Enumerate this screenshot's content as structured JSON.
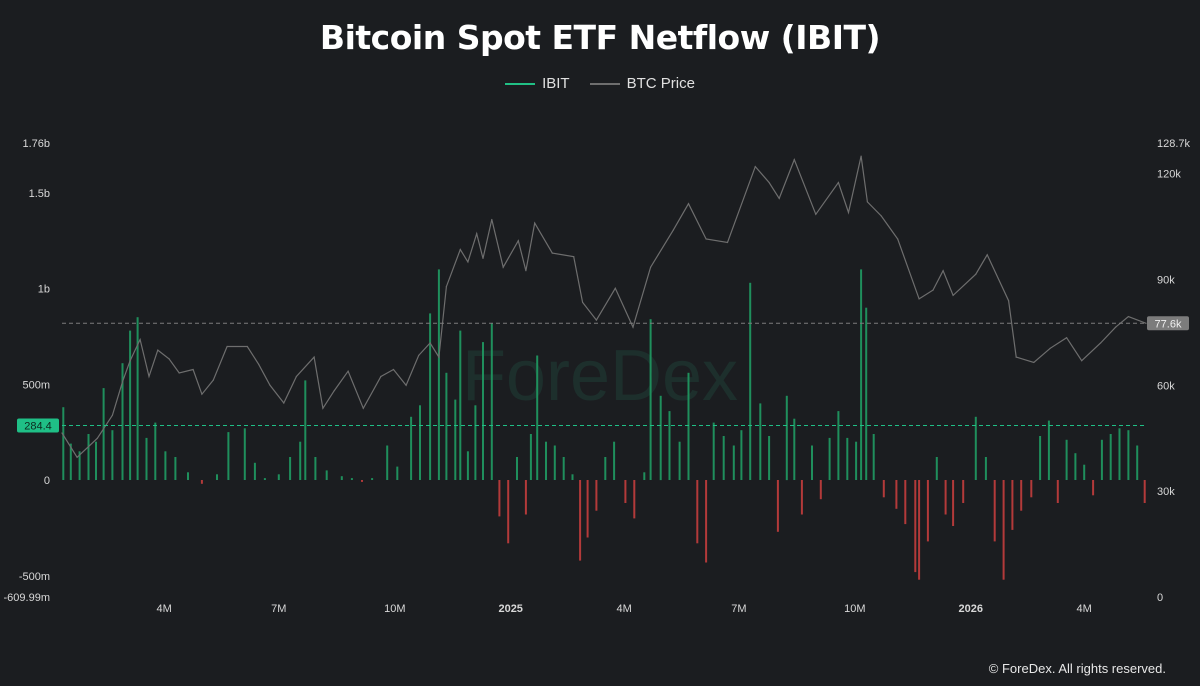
{
  "chart_data": {
    "type": "bar",
    "title": "Bitcoin Spot ETF Netflow (IBIT)",
    "legend_position": "top-center",
    "grid": false,
    "series": [
      {
        "name": "IBIT",
        "kind": "bar",
        "axis": "left"
      },
      {
        "name": "BTC Price",
        "kind": "line",
        "axis": "right"
      }
    ],
    "colors": {
      "ibit": "#21c085",
      "btc_price": "#6e6e6e",
      "bar_positive": "#1f8f5c",
      "bar_negative": "#b33a3a",
      "marker_left": "#1fbf86",
      "marker_right": "#7c7c7c"
    },
    "left_axis": {
      "ylim": [
        -609990000,
        1760000000
      ],
      "ticks": [
        {
          "value": 1760000000,
          "label": "1.76b"
        },
        {
          "value": 1500000000,
          "label": "1.5b"
        },
        {
          "value": 1000000000,
          "label": "1b"
        },
        {
          "value": 500000000,
          "label": "500m"
        },
        {
          "value": 0,
          "label": "0"
        },
        {
          "value": -500000000,
          "label": "-500m"
        },
        {
          "value": -609990000,
          "label": "-609.99m"
        }
      ]
    },
    "right_axis": {
      "ylim": [
        0,
        128700
      ],
      "ticks": [
        {
          "value": 128700,
          "label": "128.7k"
        },
        {
          "value": 120000,
          "label": "120k"
        },
        {
          "value": 90000,
          "label": "90k"
        },
        {
          "value": 60000,
          "label": "60k"
        },
        {
          "value": 30000,
          "label": "30k"
        },
        {
          "value": 0,
          "label": "0"
        }
      ]
    },
    "x_axis": {
      "xlim": [
        "2024-01-11",
        "2026-05-20"
      ],
      "ticks": [
        {
          "date": "2024-04-01",
          "label": "4M",
          "bold": false
        },
        {
          "date": "2024-07-01",
          "label": "7M",
          "bold": false
        },
        {
          "date": "2024-10-01",
          "label": "10M",
          "bold": false
        },
        {
          "date": "2025-01-01",
          "label": "2025",
          "bold": true
        },
        {
          "date": "2025-04-01",
          "label": "4M",
          "bold": false
        },
        {
          "date": "2025-07-01",
          "label": "7M",
          "bold": false
        },
        {
          "date": "2025-10-01",
          "label": "10M",
          "bold": false
        },
        {
          "date": "2026-01-01",
          "label": "2026",
          "bold": true
        },
        {
          "date": "2026-04-01",
          "label": "4M",
          "bold": false
        }
      ]
    },
    "current_markers": {
      "ibit_label": "284.4",
      "ibit_value": 284400000,
      "btc_label": "77.6k",
      "btc_value": 77600
    },
    "btc_price": [
      [
        "2024-01-11",
        46500
      ],
      [
        "2024-01-23",
        39600
      ],
      [
        "2024-02-08",
        45000
      ],
      [
        "2024-02-20",
        51500
      ],
      [
        "2024-02-28",
        61000
      ],
      [
        "2024-03-05",
        67000
      ],
      [
        "2024-03-13",
        73000
      ],
      [
        "2024-03-20",
        62500
      ],
      [
        "2024-03-27",
        70000
      ],
      [
        "2024-04-05",
        67500
      ],
      [
        "2024-04-13",
        63500
      ],
      [
        "2024-04-24",
        64500
      ],
      [
        "2024-05-01",
        57500
      ],
      [
        "2024-05-10",
        61500
      ],
      [
        "2024-05-21",
        71000
      ],
      [
        "2024-06-06",
        71000
      ],
      [
        "2024-06-15",
        66000
      ],
      [
        "2024-06-24",
        60000
      ],
      [
        "2024-07-05",
        55000
      ],
      [
        "2024-07-15",
        62500
      ],
      [
        "2024-07-29",
        68000
      ],
      [
        "2024-08-05",
        53500
      ],
      [
        "2024-08-14",
        58500
      ],
      [
        "2024-08-25",
        64000
      ],
      [
        "2024-09-06",
        53500
      ],
      [
        "2024-09-20",
        62500
      ],
      [
        "2024-09-30",
        64500
      ],
      [
        "2024-10-10",
        60000
      ],
      [
        "2024-10-20",
        68500
      ],
      [
        "2024-10-29",
        72000
      ],
      [
        "2024-11-05",
        68000
      ],
      [
        "2024-11-11",
        88000
      ],
      [
        "2024-11-22",
        98500
      ],
      [
        "2024-11-28",
        95000
      ],
      [
        "2024-12-05",
        103000
      ],
      [
        "2024-12-10",
        96000
      ],
      [
        "2024-12-17",
        107000
      ],
      [
        "2024-12-26",
        93500
      ],
      [
        "2025-01-07",
        101000
      ],
      [
        "2025-01-13",
        92500
      ],
      [
        "2025-01-20",
        106000
      ],
      [
        "2025-02-03",
        97500
      ],
      [
        "2025-02-20",
        96500
      ],
      [
        "2025-02-27",
        83500
      ],
      [
        "2025-03-10",
        78500
      ],
      [
        "2025-03-25",
        87500
      ],
      [
        "2025-04-08",
        76500
      ],
      [
        "2025-04-22",
        93500
      ],
      [
        "2025-05-10",
        104000
      ],
      [
        "2025-05-22",
        111500
      ],
      [
        "2025-06-05",
        101500
      ],
      [
        "2025-06-22",
        100500
      ],
      [
        "2025-07-14",
        122000
      ],
      [
        "2025-07-25",
        117500
      ],
      [
        "2025-08-02",
        113000
      ],
      [
        "2025-08-14",
        124000
      ],
      [
        "2025-08-31",
        108500
      ],
      [
        "2025-09-18",
        117500
      ],
      [
        "2025-09-26",
        109000
      ],
      [
        "2025-10-06",
        125000
      ],
      [
        "2025-10-11",
        112000
      ],
      [
        "2025-10-22",
        108000
      ],
      [
        "2025-11-04",
        101500
      ],
      [
        "2025-11-21",
        84500
      ],
      [
        "2025-12-02",
        87000
      ],
      [
        "2025-12-10",
        92500
      ],
      [
        "2025-12-18",
        85500
      ],
      [
        "2026-01-05",
        91500
      ],
      [
        "2026-01-14",
        97000
      ],
      [
        "2026-01-31",
        84000
      ],
      [
        "2026-02-06",
        68000
      ],
      [
        "2026-02-20",
        66500
      ],
      [
        "2026-03-05",
        70500
      ],
      [
        "2026-03-18",
        73500
      ],
      [
        "2026-03-30",
        67000
      ],
      [
        "2026-04-14",
        72000
      ],
      [
        "2026-04-26",
        76500
      ],
      [
        "2026-05-06",
        79500
      ],
      [
        "2026-05-20",
        77600
      ]
    ],
    "ibit_netflow_millions": [
      [
        "2024-01-12",
        380
      ],
      [
        "2024-01-18",
        190
      ],
      [
        "2024-01-25",
        150
      ],
      [
        "2024-02-01",
        240
      ],
      [
        "2024-02-07",
        200
      ],
      [
        "2024-02-13",
        480
      ],
      [
        "2024-02-20",
        260
      ],
      [
        "2024-02-28",
        610
      ],
      [
        "2024-03-05",
        780
      ],
      [
        "2024-03-11",
        850
      ],
      [
        "2024-03-18",
        220
      ],
      [
        "2024-03-25",
        300
      ],
      [
        "2024-04-02",
        150
      ],
      [
        "2024-04-10",
        120
      ],
      [
        "2024-04-20",
        40
      ],
      [
        "2024-05-01",
        -20
      ],
      [
        "2024-05-13",
        30
      ],
      [
        "2024-05-22",
        250
      ],
      [
        "2024-06-04",
        270
      ],
      [
        "2024-06-12",
        90
      ],
      [
        "2024-06-20",
        10
      ],
      [
        "2024-07-01",
        30
      ],
      [
        "2024-07-10",
        120
      ],
      [
        "2024-07-18",
        200
      ],
      [
        "2024-07-22",
        520
      ],
      [
        "2024-07-30",
        120
      ],
      [
        "2024-08-08",
        50
      ],
      [
        "2024-08-20",
        20
      ],
      [
        "2024-08-28",
        10
      ],
      [
        "2024-09-05",
        -10
      ],
      [
        "2024-09-13",
        10
      ],
      [
        "2024-09-25",
        180
      ],
      [
        "2024-10-03",
        70
      ],
      [
        "2024-10-14",
        330
      ],
      [
        "2024-10-21",
        390
      ],
      [
        "2024-10-29",
        870
      ],
      [
        "2024-11-05",
        1100
      ],
      [
        "2024-11-11",
        560
      ],
      [
        "2024-11-18",
        420
      ],
      [
        "2024-11-22",
        780
      ],
      [
        "2024-11-28",
        150
      ],
      [
        "2024-12-04",
        390
      ],
      [
        "2024-12-10",
        720
      ],
      [
        "2024-12-17",
        820
      ],
      [
        "2024-12-23",
        -190
      ],
      [
        "2024-12-30",
        -330
      ],
      [
        "2025-01-06",
        120
      ],
      [
        "2025-01-13",
        -180
      ],
      [
        "2025-01-17",
        240
      ],
      [
        "2025-01-22",
        650
      ],
      [
        "2025-01-29",
        200
      ],
      [
        "2025-02-05",
        180
      ],
      [
        "2025-02-12",
        120
      ],
      [
        "2025-02-19",
        30
      ],
      [
        "2025-02-25",
        -420
      ],
      [
        "2025-03-03",
        -300
      ],
      [
        "2025-03-10",
        -160
      ],
      [
        "2025-03-17",
        120
      ],
      [
        "2025-03-24",
        200
      ],
      [
        "2025-04-02",
        -120
      ],
      [
        "2025-04-09",
        -200
      ],
      [
        "2025-04-17",
        40
      ],
      [
        "2025-04-22",
        840
      ],
      [
        "2025-04-30",
        440
      ],
      [
        "2025-05-07",
        360
      ],
      [
        "2025-05-15",
        200
      ],
      [
        "2025-05-22",
        560
      ],
      [
        "2025-05-29",
        -330
      ],
      [
        "2025-06-05",
        -430
      ],
      [
        "2025-06-11",
        300
      ],
      [
        "2025-06-19",
        230
      ],
      [
        "2025-06-27",
        180
      ],
      [
        "2025-07-03",
        260
      ],
      [
        "2025-07-10",
        1030
      ],
      [
        "2025-07-18",
        400
      ],
      [
        "2025-07-25",
        230
      ],
      [
        "2025-08-01",
        -270
      ],
      [
        "2025-08-08",
        440
      ],
      [
        "2025-08-14",
        320
      ],
      [
        "2025-08-20",
        -180
      ],
      [
        "2025-08-28",
        180
      ],
      [
        "2025-09-04",
        -100
      ],
      [
        "2025-09-11",
        220
      ],
      [
        "2025-09-18",
        360
      ],
      [
        "2025-09-25",
        220
      ],
      [
        "2025-10-02",
        200
      ],
      [
        "2025-10-06",
        1100
      ],
      [
        "2025-10-10",
        900
      ],
      [
        "2025-10-16",
        240
      ],
      [
        "2025-10-24",
        -90
      ],
      [
        "2025-11-03",
        -150
      ],
      [
        "2025-11-10",
        -230
      ],
      [
        "2025-11-18",
        -480
      ],
      [
        "2025-11-21",
        -520
      ],
      [
        "2025-11-28",
        -320
      ],
      [
        "2025-12-05",
        120
      ],
      [
        "2025-12-12",
        -180
      ],
      [
        "2025-12-18",
        -240
      ],
      [
        "2025-12-26",
        -120
      ],
      [
        "2026-01-05",
        330
      ],
      [
        "2026-01-13",
        120
      ],
      [
        "2026-01-20",
        -320
      ],
      [
        "2026-01-27",
        -520
      ],
      [
        "2026-02-03",
        -260
      ],
      [
        "2026-02-10",
        -160
      ],
      [
        "2026-02-18",
        -90
      ],
      [
        "2026-02-25",
        230
      ],
      [
        "2026-03-04",
        310
      ],
      [
        "2026-03-11",
        -120
      ],
      [
        "2026-03-18",
        210
      ],
      [
        "2026-03-25",
        140
      ],
      [
        "2026-04-01",
        80
      ],
      [
        "2026-04-08",
        -80
      ],
      [
        "2026-04-15",
        210
      ],
      [
        "2026-04-22",
        240
      ],
      [
        "2026-04-29",
        270
      ],
      [
        "2026-05-06",
        260
      ],
      [
        "2026-05-13",
        180
      ],
      [
        "2026-05-19",
        -120
      ]
    ]
  },
  "legend": {
    "ibit_label": "IBIT",
    "btc_label": "BTC Price"
  },
  "watermark": "ForeDex",
  "footer": {
    "copyright": "© ForeDex. All rights reserved."
  }
}
